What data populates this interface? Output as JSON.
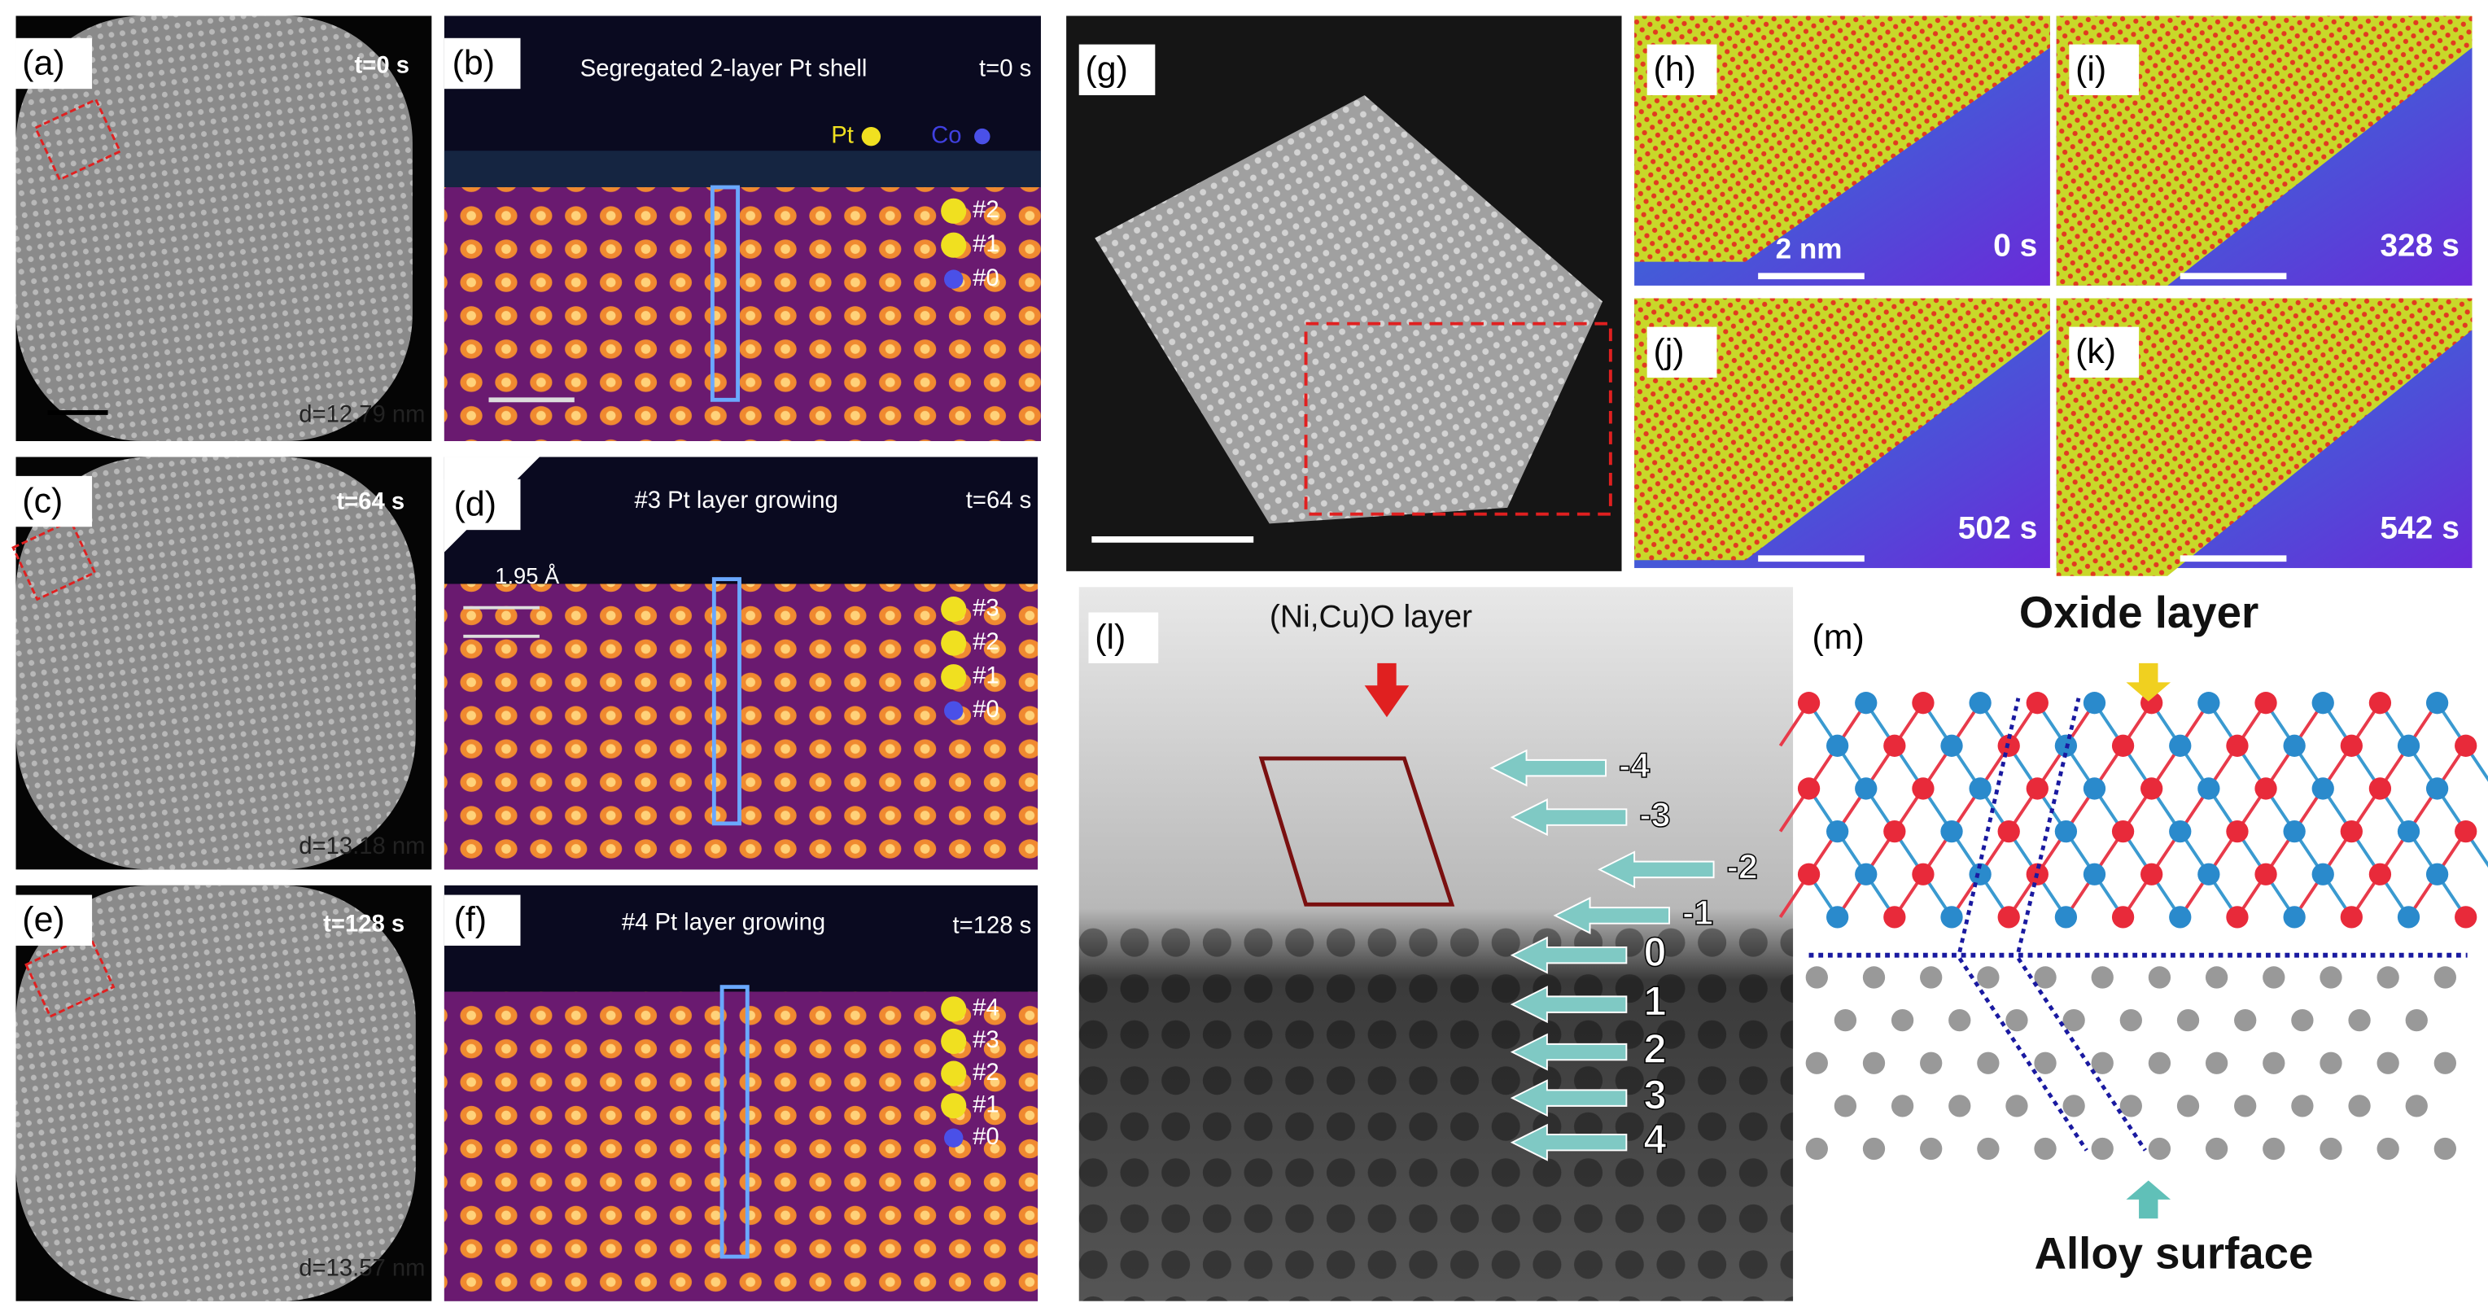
{
  "panels": {
    "a": {
      "label": "(a)",
      "time": "t=0 s",
      "diameter": "d=12.79 nm"
    },
    "b": {
      "label": "(b)",
      "title": "Segregated 2-layer Pt shell",
      "time": "t=0 s",
      "legend": [
        "Pt",
        "Co"
      ],
      "layers": [
        "#2",
        "#1",
        "#0"
      ]
    },
    "c": {
      "label": "(c)",
      "time": "t=64 s",
      "diameter": "d=13.18 nm"
    },
    "d": {
      "label": "(d)",
      "title": "#3 Pt layer growing",
      "time": "t=64 s",
      "spacing": "1.95 Å",
      "layers": [
        "#3",
        "#2",
        "#1",
        "#0"
      ]
    },
    "e": {
      "label": "(e)",
      "time": "t=128 s",
      "diameter": "d=13.57 nm"
    },
    "f": {
      "label": "(f)",
      "title": "#4 Pt layer growing",
      "time": "t=128 s",
      "layers": [
        "#4",
        "#3",
        "#2",
        "#1",
        "#0"
      ]
    },
    "g": {
      "label": "(g)"
    },
    "h": {
      "label": "(h)",
      "scale": "2 nm",
      "time": "0 s"
    },
    "i": {
      "label": "(i)",
      "time": "328 s"
    },
    "j": {
      "label": "(j)",
      "time": "502 s"
    },
    "k": {
      "label": "(k)",
      "time": "542 s"
    },
    "l": {
      "label": "(l)",
      "title": "(Ni,Cu)O layer",
      "layers": [
        "-4",
        "-3",
        "-2",
        "-1",
        "0",
        "1",
        "2",
        "3",
        "4"
      ]
    },
    "m": {
      "label": "(m)",
      "top": "Oxide layer",
      "bottom": "Alloy surface"
    }
  }
}
